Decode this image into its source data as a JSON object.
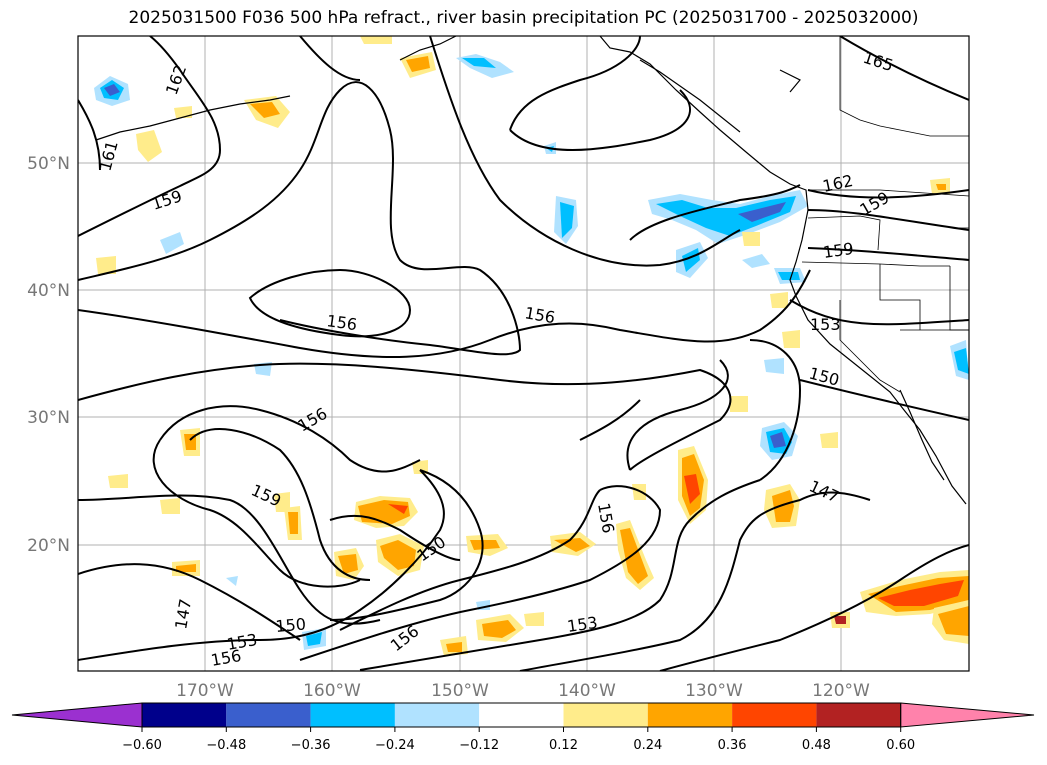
{
  "title": "2025031500 F036 500 hPa refract., river basin precipitation PC (2025031700 - 2025032000)",
  "map": {
    "lat_labels": [
      "50°N",
      "40°N",
      "30°N",
      "20°N"
    ],
    "lon_labels": [
      "170°W",
      "160°W",
      "150°W",
      "140°W",
      "130°W",
      "120°W"
    ],
    "contour_labels": [
      "165",
      "162",
      "162",
      "161",
      "159",
      "159",
      "159",
      "156",
      "156",
      "156",
      "156",
      "156",
      "156",
      "153",
      "153",
      "153",
      "150",
      "150",
      "150",
      "147",
      "147",
      "159"
    ]
  },
  "colorbar": {
    "ticks": [
      "−0.60",
      "−0.48",
      "−0.36",
      "−0.24",
      "−0.12",
      "0.12",
      "0.24",
      "0.36",
      "0.48",
      "0.60"
    ],
    "colors": [
      "#9b30d0",
      "#00008b",
      "#3a5fcd",
      "#00bfff",
      "#b0e2ff",
      "#ffffff",
      "#ffec8b",
      "#ffa500",
      "#ff4500",
      "#b22222",
      "#ff82ab"
    ]
  }
}
